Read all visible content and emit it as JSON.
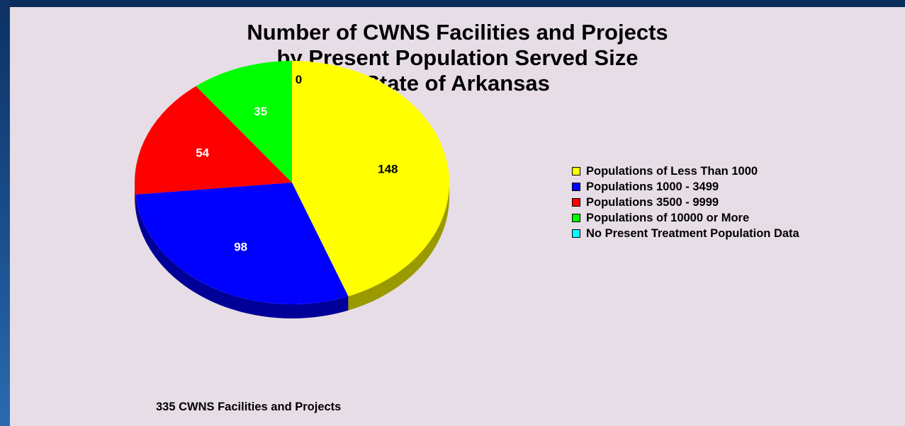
{
  "chart_data": {
    "type": "pie",
    "title": [
      "Number of CWNS Facilities and Projects",
      "by Present Population Served Size",
      "State of Arkansas"
    ],
    "caption": "335 CWNS Facilities and Projects",
    "legend_position": "right",
    "slices": [
      {
        "label": "Populations of Less Than 1000",
        "value": 148,
        "value_label": "148",
        "color": "#ffff00",
        "side_color": "#9a9a00",
        "text_color": "#000000"
      },
      {
        "label": "Populations 1000 - 3499",
        "value": 98,
        "value_label": "98",
        "color": "#0000ff",
        "side_color": "#000099",
        "text_color": "#ffffff"
      },
      {
        "label": "Populations 3500 - 9999",
        "value": 54,
        "value_label": "54",
        "color": "#ff0000",
        "side_color": "#990000",
        "text_color": "#ffffff"
      },
      {
        "label": "Populations of 10000 or More",
        "value": 35,
        "value_label": "35",
        "color": "#00ff00",
        "side_color": "#009900",
        "text_color": "#ffffff"
      },
      {
        "label": "No Present Treatment Population Data",
        "value": 0,
        "value_label": "0",
        "color": "#00ffff",
        "side_color": "#009999",
        "text_color": "#000000"
      }
    ]
  }
}
